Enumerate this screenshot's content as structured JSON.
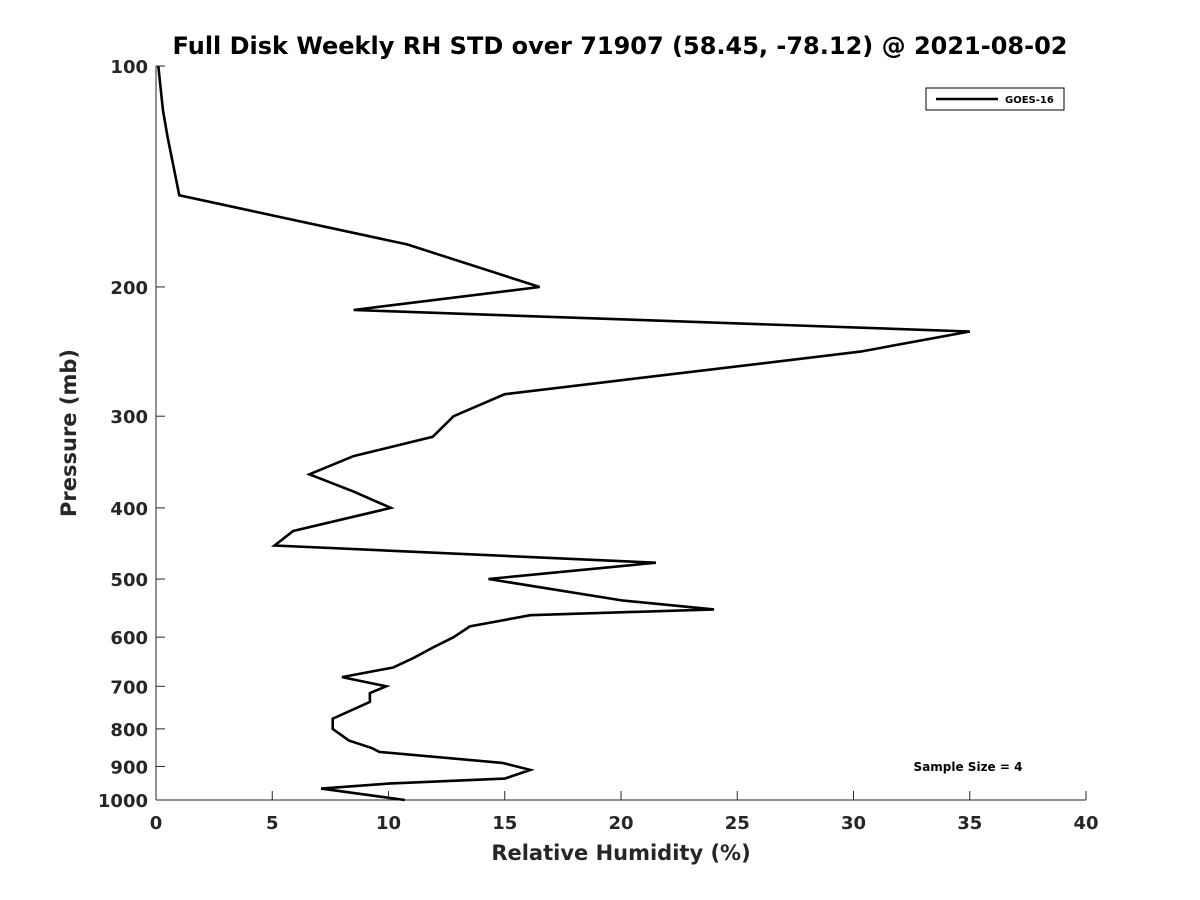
{
  "chart_data": {
    "type": "line",
    "title": "Full Disk Weekly RH STD over 71907 (58.45, -78.12) @ 2021-08-02",
    "xlabel": "Relative Humidity (%)",
    "ylabel": "Pressure (mb)",
    "xlim": [
      0,
      40
    ],
    "ylim": [
      100,
      1000
    ],
    "y_scale": "log",
    "y_reversed": true,
    "grid": false,
    "legend_position": "top-right",
    "x_ticks": [
      0,
      5,
      10,
      15,
      20,
      25,
      30,
      35,
      40
    ],
    "x_tick_labels": [
      "0",
      "5",
      "10",
      "15",
      "20",
      "25",
      "30",
      "35",
      "40"
    ],
    "y_ticks": [
      100,
      200,
      300,
      400,
      500,
      600,
      700,
      800,
      900,
      1000
    ],
    "y_tick_labels": [
      "100",
      "200",
      "300",
      "400",
      "500",
      "600",
      "700",
      "800",
      "900",
      "1000"
    ],
    "series": [
      {
        "name": "GOES-16",
        "color": "#000000",
        "points": [
          [
            0.1,
            100
          ],
          [
            0.3,
            115
          ],
          [
            0.5,
            125
          ],
          [
            1.0,
            150
          ],
          [
            10.8,
            175
          ],
          [
            16.5,
            200
          ],
          [
            8.5,
            215
          ],
          [
            35.0,
            230
          ],
          [
            30.3,
            245
          ],
          [
            15.0,
            280
          ],
          [
            12.8,
            300
          ],
          [
            11.9,
            320
          ],
          [
            8.5,
            340
          ],
          [
            6.6,
            360
          ],
          [
            8.5,
            380
          ],
          [
            10.1,
            400
          ],
          [
            5.9,
            430
          ],
          [
            5.1,
            450
          ],
          [
            21.5,
            475
          ],
          [
            14.3,
            500
          ],
          [
            20.1,
            535
          ],
          [
            24.0,
            550
          ],
          [
            16.1,
            560
          ],
          [
            13.5,
            580
          ],
          [
            12.8,
            600
          ],
          [
            11.9,
            620
          ],
          [
            11.1,
            640
          ],
          [
            10.2,
            660
          ],
          [
            8.0,
            680
          ],
          [
            9.9,
            700
          ],
          [
            9.2,
            715
          ],
          [
            9.2,
            735
          ],
          [
            7.6,
            775
          ],
          [
            7.6,
            800
          ],
          [
            8.3,
            830
          ],
          [
            9.3,
            850
          ],
          [
            9.6,
            860
          ],
          [
            14.9,
            890
          ],
          [
            16.1,
            910
          ],
          [
            15.0,
            935
          ],
          [
            10.0,
            950
          ],
          [
            7.1,
            965
          ],
          [
            9.7,
            990
          ],
          [
            10.7,
            1000
          ]
        ]
      }
    ],
    "annotations": [
      "Sample Size = 4"
    ]
  }
}
